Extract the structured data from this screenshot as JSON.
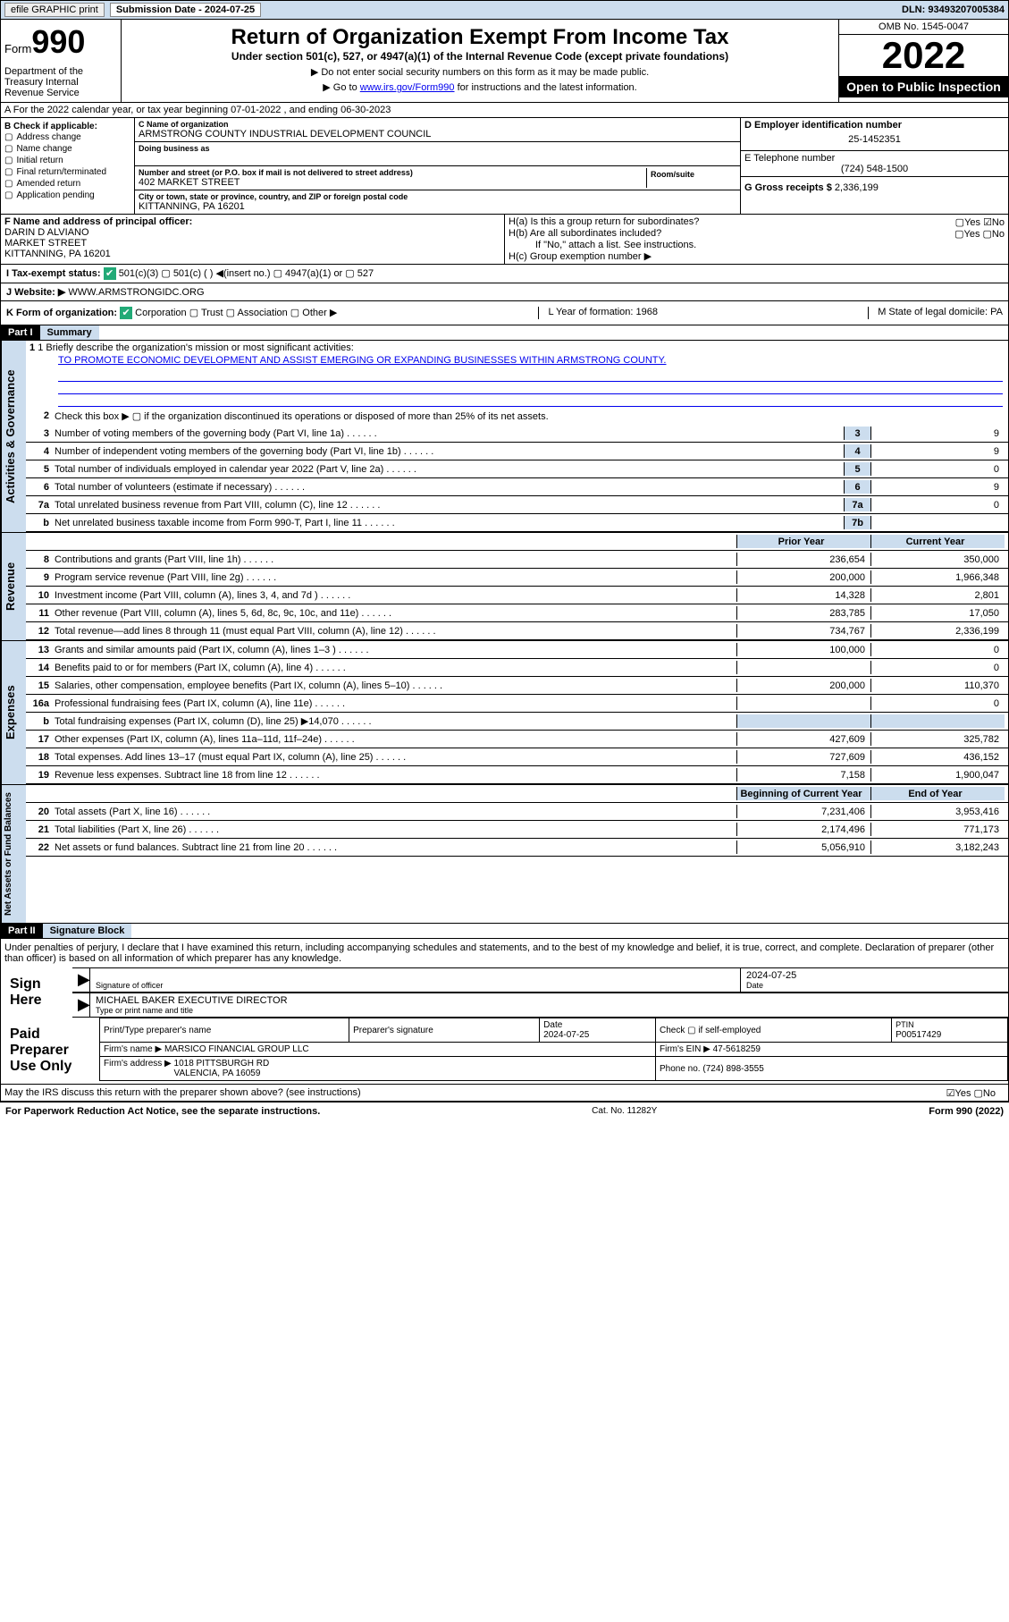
{
  "top": {
    "efile": "efile GRAPHIC print",
    "sub_label": "Submission Date - 2024-07-25",
    "dln": "DLN: 93493207005384"
  },
  "header": {
    "form": "Form",
    "form_num": "990",
    "dept": "Department of the Treasury Internal Revenue Service",
    "title": "Return of Organization Exempt From Income Tax",
    "sub": "Under section 501(c), 527, or 4947(a)(1) of the Internal Revenue Code (except private foundations)",
    "note1": "▶ Do not enter social security numbers on this form as it may be made public.",
    "note2_pre": "▶ Go to ",
    "note2_link": "www.irs.gov/Form990",
    "note2_post": " for instructions and the latest information.",
    "omb": "OMB No. 1545-0047",
    "year": "2022",
    "pub": "Open to Public Inspection"
  },
  "sectionA": "A For the 2022 calendar year, or tax year beginning 07-01-2022    , and ending 06-30-2023",
  "B": {
    "title": "B Check if applicable:",
    "items": [
      "Address change",
      "Name change",
      "Initial return",
      "Final return/terminated",
      "Amended return",
      "Application pending"
    ]
  },
  "C": {
    "name_lbl": "C Name of organization",
    "name": "ARMSTRONG COUNTY INDUSTRIAL DEVELOPMENT COUNCIL",
    "dba_lbl": "Doing business as",
    "addr_lbl": "Number and street (or P.O. box if mail is not delivered to street address)",
    "room_lbl": "Room/suite",
    "addr": "402 MARKET STREET",
    "city_lbl": "City or town, state or province, country, and ZIP or foreign postal code",
    "city": "KITTANNING, PA  16201"
  },
  "D": {
    "lbl": "D Employer identification number",
    "val": "25-1452351"
  },
  "E": {
    "lbl": "E Telephone number",
    "val": "(724) 548-1500"
  },
  "G": {
    "lbl": "G Gross receipts $",
    "val": "2,336,199"
  },
  "F": {
    "lbl": "F  Name and address of principal officer:",
    "val": "DARIN D ALVIANO\nMARKET STREET\nKITTANNING, PA  16201"
  },
  "H": {
    "a": "H(a)  Is this a group return for subordinates?",
    "a_ans": "▢Yes ☑No",
    "b": "H(b)  Are all subordinates included?",
    "b_ans": "▢Yes ▢No",
    "b_note": "If \"No,\" attach a list. See instructions.",
    "c": "H(c)  Group exemption number ▶"
  },
  "I": {
    "lbl": "I    Tax-exempt status:",
    "opts": "501(c)(3)    ▢  501(c) (  ) ◀(insert no.)    ▢  4947(a)(1) or  ▢  527"
  },
  "J": {
    "lbl": "J    Website: ▶",
    "val": "WWW.ARMSTRONGIDC.ORG"
  },
  "K": {
    "lbl": "K Form of organization:",
    "opts": "Corporation  ▢ Trust  ▢ Association  ▢ Other ▶",
    "L": "L Year of formation: 1968",
    "M": "M State of legal domicile: PA"
  },
  "partI": {
    "hdr": "Part I",
    "title": "Summary"
  },
  "summary": {
    "q1_lbl": "1  Briefly describe the organization's mission or most significant activities:",
    "q1_val": "TO PROMOTE ECONOMIC DEVELOPMENT AND ASSIST EMERGING OR EXPANDING BUSINESSES WITHIN ARMSTRONG COUNTY.",
    "q2": "Check this box ▶ ▢  if the organization discontinued its operations or disposed of more than 25% of its net assets.",
    "lines_gov": [
      {
        "n": "3",
        "t": "Number of voting members of the governing body (Part VI, line 1a)",
        "box": "3",
        "v": "9"
      },
      {
        "n": "4",
        "t": "Number of independent voting members of the governing body (Part VI, line 1b)",
        "box": "4",
        "v": "9"
      },
      {
        "n": "5",
        "t": "Total number of individuals employed in calendar year 2022 (Part V, line 2a)",
        "box": "5",
        "v": "0"
      },
      {
        "n": "6",
        "t": "Total number of volunteers (estimate if necessary)",
        "box": "6",
        "v": "9"
      },
      {
        "n": "7a",
        "t": "Total unrelated business revenue from Part VIII, column (C), line 12",
        "box": "7a",
        "v": "0"
      },
      {
        "n": "b",
        "t": "Net unrelated business taxable income from Form 990-T, Part I, line 11",
        "box": "7b",
        "v": ""
      }
    ],
    "col_hdr_prior": "Prior Year",
    "col_hdr_curr": "Current Year",
    "rev": [
      {
        "n": "8",
        "t": "Contributions and grants (Part VIII, line 1h)",
        "p": "236,654",
        "c": "350,000"
      },
      {
        "n": "9",
        "t": "Program service revenue (Part VIII, line 2g)",
        "p": "200,000",
        "c": "1,966,348"
      },
      {
        "n": "10",
        "t": "Investment income (Part VIII, column (A), lines 3, 4, and 7d )",
        "p": "14,328",
        "c": "2,801"
      },
      {
        "n": "11",
        "t": "Other revenue (Part VIII, column (A), lines 5, 6d, 8c, 9c, 10c, and 11e)",
        "p": "283,785",
        "c": "17,050"
      },
      {
        "n": "12",
        "t": "Total revenue—add lines 8 through 11 (must equal Part VIII, column (A), line 12)",
        "p": "734,767",
        "c": "2,336,199"
      }
    ],
    "exp": [
      {
        "n": "13",
        "t": "Grants and similar amounts paid (Part IX, column (A), lines 1–3 )",
        "p": "100,000",
        "c": "0"
      },
      {
        "n": "14",
        "t": "Benefits paid to or for members (Part IX, column (A), line 4)",
        "p": "",
        "c": "0"
      },
      {
        "n": "15",
        "t": "Salaries, other compensation, employee benefits (Part IX, column (A), lines 5–10)",
        "p": "200,000",
        "c": "110,370"
      },
      {
        "n": "16a",
        "t": "Professional fundraising fees (Part IX, column (A), line 11e)",
        "p": "",
        "c": "0"
      },
      {
        "n": "b",
        "t": "Total fundraising expenses (Part IX, column (D), line 25) ▶14,070",
        "p": "—shade—",
        "c": "—shade—"
      },
      {
        "n": "17",
        "t": "Other expenses (Part IX, column (A), lines 11a–11d, 11f–24e)",
        "p": "427,609",
        "c": "325,782"
      },
      {
        "n": "18",
        "t": "Total expenses. Add lines 13–17 (must equal Part IX, column (A), line 25)",
        "p": "727,609",
        "c": "436,152"
      },
      {
        "n": "19",
        "t": "Revenue less expenses. Subtract line 18 from line 12",
        "p": "7,158",
        "c": "1,900,047"
      }
    ],
    "col_hdr_beg": "Beginning of Current Year",
    "col_hdr_end": "End of Year",
    "net": [
      {
        "n": "20",
        "t": "Total assets (Part X, line 16)",
        "p": "7,231,406",
        "c": "3,953,416"
      },
      {
        "n": "21",
        "t": "Total liabilities (Part X, line 26)",
        "p": "2,174,496",
        "c": "771,173"
      },
      {
        "n": "22",
        "t": "Net assets or fund balances. Subtract line 21 from line 20",
        "p": "5,056,910",
        "c": "3,182,243"
      }
    ]
  },
  "vstrips": {
    "gov": "Activities & Governance",
    "rev": "Revenue",
    "exp": "Expenses",
    "net": "Net Assets or Fund Balances"
  },
  "partII": {
    "hdr": "Part II",
    "title": "Signature Block"
  },
  "sig": {
    "decl": "Under penalties of perjury, I declare that I have examined this return, including accompanying schedules and statements, and to the best of my knowledge and belief, it is true, correct, and complete. Declaration of preparer (other than officer) is based on all information of which preparer has any knowledge.",
    "sign_here": "Sign Here",
    "sig_lbl": "Signature of officer",
    "date_lbl": "Date",
    "date_val": "2024-07-25",
    "name_lbl": "Type or print name and title",
    "name_val": "MICHAEL BAKER  EXECUTIVE DIRECTOR",
    "paid": "Paid Preparer Use Only",
    "prep_name_lbl": "Print/Type preparer's name",
    "prep_sig_lbl": "Preparer's signature",
    "prep_date": "Date\n2024-07-25",
    "prep_check": "Check ▢ if self-employed",
    "ptin_lbl": "PTIN",
    "ptin": "P00517429",
    "firm_name_lbl": "Firm's name    ▶",
    "firm_name": "MARSICO FINANCIAL GROUP LLC",
    "firm_ein_lbl": "Firm's EIN ▶",
    "firm_ein": "47-5618259",
    "firm_addr_lbl": "Firm's address ▶",
    "firm_addr": "1018 PITTSBURGH RD\nVALENCIA, PA  16059",
    "phone_lbl": "Phone no.",
    "phone": "(724) 898-3555",
    "discuss": "May the IRS discuss this return with the preparer shown above? (see instructions)",
    "discuss_ans": "☑Yes  ▢No"
  },
  "footer": {
    "l": "For Paperwork Reduction Act Notice, see the separate instructions.",
    "m": "Cat. No. 11282Y",
    "r": "Form 990 (2022)"
  }
}
